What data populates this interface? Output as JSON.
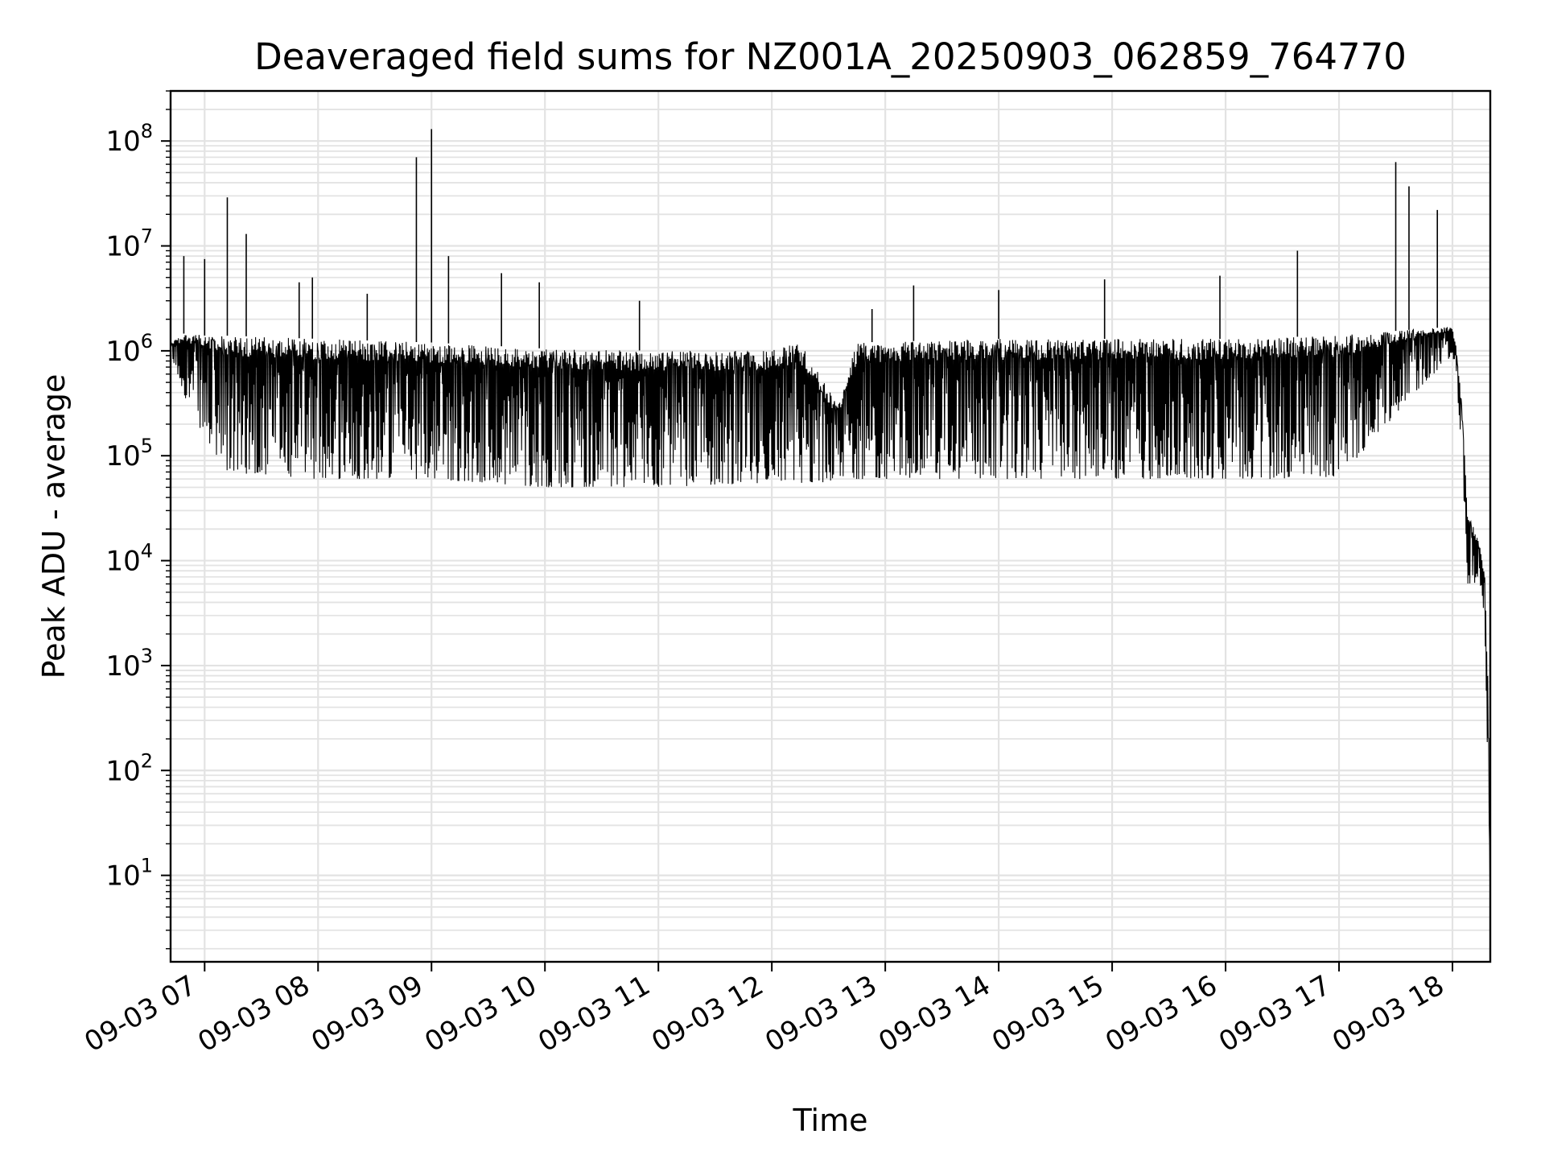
{
  "chart_data": {
    "type": "line",
    "title": "Deaveraged field sums for NZ001A_20250903_062859_764770",
    "xlabel": "Time",
    "ylabel": "Peak ADU - average",
    "yscale": "log",
    "ylim": [
      1.5,
      300000000
    ],
    "xlim": [
      "09-03 06:42",
      "09-03 18:20"
    ],
    "grid": true,
    "legend": "none",
    "line_color": "#000000",
    "x_ticks": [
      "09-03 07",
      "09-03 08",
      "09-03 09",
      "09-03 10",
      "09-03 11",
      "09-03 12",
      "09-03 13",
      "09-03 14",
      "09-03 15",
      "09-03 16",
      "09-03 17",
      "09-03 18"
    ],
    "y_ticks": [
      {
        "base": "10",
        "exp": "1",
        "value": 10
      },
      {
        "base": "10",
        "exp": "2",
        "value": 100
      },
      {
        "base": "10",
        "exp": "3",
        "value": 1000
      },
      {
        "base": "10",
        "exp": "4",
        "value": 10000
      },
      {
        "base": "10",
        "exp": "5",
        "value": 100000
      },
      {
        "base": "10",
        "exp": "6",
        "value": 1000000
      },
      {
        "base": "10",
        "exp": "7",
        "value": 10000000
      },
      {
        "base": "10",
        "exp": "8",
        "value": 100000000
      }
    ],
    "series": [
      {
        "envelope_points": [
          {
            "x": "09-03 06:42",
            "low": 900000,
            "high": 1200000
          },
          {
            "x": "09-03 06:50",
            "low": 350000,
            "high": 1500000
          },
          {
            "x": "09-03 07:00",
            "low": 150000,
            "high": 1400000
          },
          {
            "x": "09-03 07:10",
            "low": 70000,
            "high": 1400000
          },
          {
            "x": "09-03 08:00",
            "low": 60000,
            "high": 1300000
          },
          {
            "x": "09-03 09:00",
            "low": 60000,
            "high": 1200000
          },
          {
            "x": "09-03 10:00",
            "low": 50000,
            "high": 1050000
          },
          {
            "x": "09-03 11:00",
            "low": 50000,
            "high": 1000000
          },
          {
            "x": "09-03 11:55",
            "low": 55000,
            "high": 1000000
          },
          {
            "x": "09-03 12:15",
            "low": 55000,
            "high": 1200000
          },
          {
            "x": "09-03 12:25",
            "low": 55000,
            "high": 600000
          },
          {
            "x": "09-03 12:35",
            "low": 60000,
            "high": 300000
          },
          {
            "x": "09-03 12:45",
            "low": 60000,
            "high": 1200000
          },
          {
            "x": "09-03 14:00",
            "low": 60000,
            "high": 1300000
          },
          {
            "x": "09-03 16:00",
            "low": 60000,
            "high": 1300000
          },
          {
            "x": "09-03 17:00",
            "low": 60000,
            "high": 1400000
          },
          {
            "x": "09-03 17:40",
            "low": 400000,
            "high": 1600000
          },
          {
            "x": "09-03 18:00",
            "low": 900000,
            "high": 1700000
          },
          {
            "x": "09-03 18:02",
            "low": 600000,
            "high": 1100000
          },
          {
            "x": "09-03 18:05",
            "low": 100000,
            "high": 300000
          },
          {
            "x": "09-03 18:08",
            "low": 6000,
            "high": 30000
          },
          {
            "x": "09-03 18:14",
            "low": 6000,
            "high": 15000
          },
          {
            "x": "09-03 18:17",
            "low": 3000,
            "high": 8000
          },
          {
            "x": "09-03 18:19",
            "low": 50,
            "high": 500
          },
          {
            "x": "09-03 18:20",
            "low": 4,
            "high": 4
          }
        ],
        "spikes": [
          {
            "x": "09-03 06:49",
            "value": 8000000
          },
          {
            "x": "09-03 07:00",
            "value": 7500000
          },
          {
            "x": "09-03 07:12",
            "value": 29000000
          },
          {
            "x": "09-03 07:22",
            "value": 13000000
          },
          {
            "x": "09-03 07:50",
            "value": 4500000
          },
          {
            "x": "09-03 07:57",
            "value": 5000000
          },
          {
            "x": "09-03 08:26",
            "value": 3500000
          },
          {
            "x": "09-03 08:52",
            "value": 70000000
          },
          {
            "x": "09-03 09:00",
            "value": 130000000
          },
          {
            "x": "09-03 09:09",
            "value": 8000000
          },
          {
            "x": "09-03 09:37",
            "value": 5500000
          },
          {
            "x": "09-03 09:57",
            "value": 4500000
          },
          {
            "x": "09-03 10:50",
            "value": 3000000
          },
          {
            "x": "09-03 12:53",
            "value": 2500000
          },
          {
            "x": "09-03 13:15",
            "value": 4200000
          },
          {
            "x": "09-03 14:00",
            "value": 3800000
          },
          {
            "x": "09-03 14:56",
            "value": 4800000
          },
          {
            "x": "09-03 15:57",
            "value": 5200000
          },
          {
            "x": "09-03 16:38",
            "value": 9000000
          },
          {
            "x": "09-03 17:30",
            "value": 63000000
          },
          {
            "x": "09-03 17:37",
            "value": 37000000
          },
          {
            "x": "09-03 17:52",
            "value": 22000000
          }
        ]
      }
    ]
  }
}
